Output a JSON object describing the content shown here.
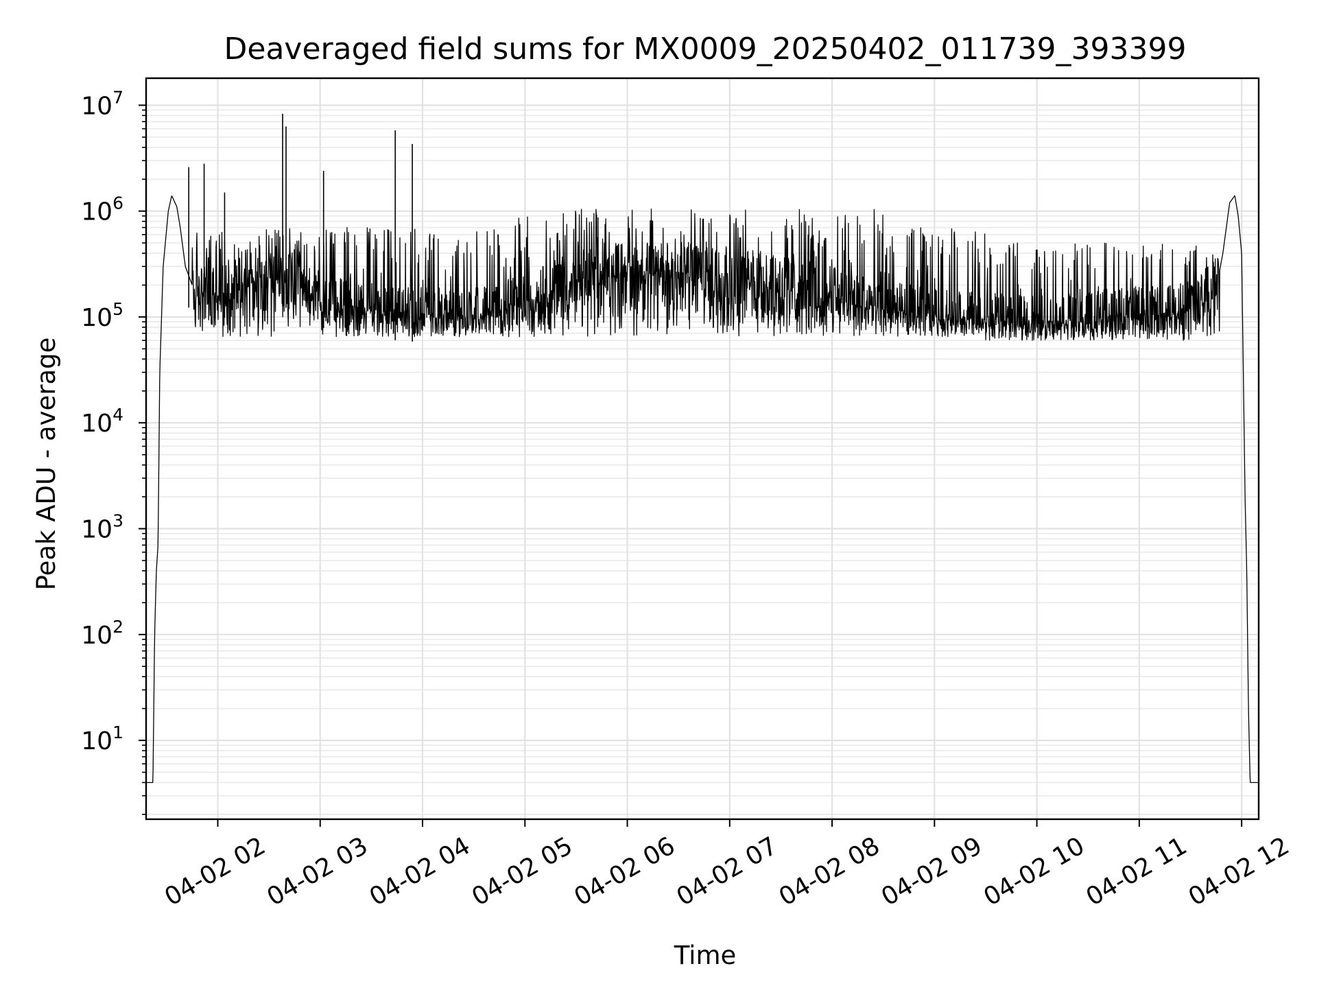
{
  "chart_data": {
    "type": "line",
    "title": "Deaveraged field sums for MX0009_20250402_011739_393399",
    "xlabel": "Time",
    "ylabel": "Peak ADU - average",
    "yscale": "log",
    "xlim": [
      "2025-04-02 01:18",
      "2025-04-02 12:10"
    ],
    "ylim": [
      1.8,
      18000000
    ],
    "grid": "on (major and minor)",
    "legend": "none",
    "line_color": "#000000",
    "x_ticks": [
      "2025-04-02 02:00",
      "2025-04-02 03:00",
      "2025-04-02 04:00",
      "2025-04-02 05:00",
      "2025-04-02 06:00",
      "2025-04-02 07:00",
      "2025-04-02 08:00",
      "2025-04-02 09:00",
      "2025-04-02 10:00",
      "2025-04-02 11:00",
      "2025-04-02 12:00"
    ],
    "x_tick_labels": [
      "04-02 02",
      "04-02 03",
      "04-02 04",
      "04-02 05",
      "04-02 06",
      "04-02 07",
      "04-02 08",
      "04-02 09",
      "04-02 10",
      "04-02 11",
      "04-02 12"
    ],
    "y_ticks": [
      10,
      100,
      1000,
      10000,
      100000,
      1000000,
      10000000
    ],
    "y_tick_labels": [
      {
        "base": "10",
        "exp": "1"
      },
      {
        "base": "10",
        "exp": "2"
      },
      {
        "base": "10",
        "exp": "3"
      },
      {
        "base": "10",
        "exp": "4"
      },
      {
        "base": "10",
        "exp": "5"
      },
      {
        "base": "10",
        "exp": "6"
      },
      {
        "base": "10",
        "exp": "7"
      }
    ],
    "series": [
      {
        "points": [
          [
            "2025-04-02 01:18",
            4
          ],
          [
            "2025-04-02 01:22",
            4
          ],
          [
            "2025-04-02 01:23",
            100
          ],
          [
            "2025-04-02 01:24",
            400
          ],
          [
            "2025-04-02 01:25",
            700
          ],
          [
            "2025-04-02 01:26",
            30000
          ],
          [
            "2025-04-02 01:28",
            300000
          ],
          [
            "2025-04-02 01:31",
            1000000
          ],
          [
            "2025-04-02 01:33",
            1400000
          ],
          [
            "2025-04-02 01:36",
            1100000
          ],
          [
            "2025-04-02 01:38",
            700000
          ],
          [
            "2025-04-02 01:41",
            300000
          ],
          [
            "2025-04-02 01:45",
            200000
          ],
          [
            "2025-04-02 02:00",
            180000
          ],
          [
            "2025-04-02 02:15",
            250000
          ],
          [
            "2025-04-02 02:30",
            300000
          ],
          [
            "2025-04-02 02:45",
            220000
          ],
          [
            "2025-04-02 03:00",
            160000
          ],
          [
            "2025-04-02 03:15",
            140000
          ],
          [
            "2025-04-02 03:30",
            130000
          ],
          [
            "2025-04-02 03:45",
            120000
          ],
          [
            "2025-04-02 04:00",
            115000
          ],
          [
            "2025-04-02 04:30",
            110000
          ],
          [
            "2025-04-02 05:00",
            150000
          ],
          [
            "2025-04-02 05:30",
            250000
          ],
          [
            "2025-04-02 06:00",
            300000
          ],
          [
            "2025-04-02 06:30",
            300000
          ],
          [
            "2025-04-02 07:00",
            280000
          ],
          [
            "2025-04-02 07:30",
            220000
          ],
          [
            "2025-04-02 08:00",
            180000
          ],
          [
            "2025-04-02 08:30",
            130000
          ],
          [
            "2025-04-02 09:00",
            110000
          ],
          [
            "2025-04-02 09:30",
            100000
          ],
          [
            "2025-04-02 10:00",
            95000
          ],
          [
            "2025-04-02 10:30",
            105000
          ],
          [
            "2025-04-02 11:00",
            115000
          ],
          [
            "2025-04-02 11:30",
            130000
          ],
          [
            "2025-04-02 11:45",
            180000
          ],
          [
            "2025-04-02 11:49",
            400000
          ],
          [
            "2025-04-02 11:53",
            1200000
          ],
          [
            "2025-04-02 11:56",
            1400000
          ],
          [
            "2025-04-02 11:58",
            900000
          ],
          [
            "2025-04-02 12:00",
            400000
          ],
          [
            "2025-04-02 12:01",
            30000
          ],
          [
            "2025-04-02 12:02",
            2000
          ],
          [
            "2025-04-02 12:03",
            400
          ],
          [
            "2025-04-02 12:04",
            20
          ],
          [
            "2025-04-02 12:05",
            4
          ],
          [
            "2025-04-02 12:10",
            4
          ]
        ],
        "spikes": [
          [
            "2025-04-02 01:43",
            2600000
          ],
          [
            "2025-04-02 01:52",
            2800000
          ],
          [
            "2025-04-02 02:04",
            1500000
          ],
          [
            "2025-04-02 02:38",
            8300000
          ],
          [
            "2025-04-02 02:40",
            6300000
          ],
          [
            "2025-04-02 03:02",
            2400000
          ],
          [
            "2025-04-02 03:44",
            5800000
          ],
          [
            "2025-04-02 03:54",
            4300000
          ]
        ]
      }
    ]
  }
}
